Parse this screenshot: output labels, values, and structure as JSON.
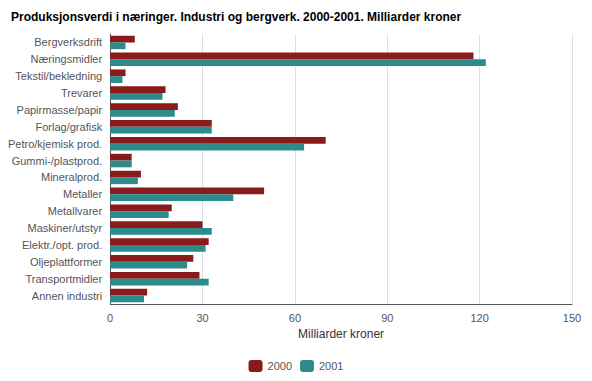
{
  "chart_data": {
    "type": "bar",
    "orientation": "horizontal",
    "title": "Produksjonsverdi i næringer. Industri og bergverk. 2000-2001. Milliarder kroner",
    "categories": [
      "Bergverksdrift",
      "Næringsmidler",
      "Tekstil/bekledning",
      "Trevarer",
      "Papirmasse/papir",
      "Forlag/grafisk",
      "Petro/kjemisk prod.",
      "Gummi-/plastprod.",
      "Mineralprod.",
      "Metaller",
      "Metallvarer",
      "Maskiner/utstyr",
      "Elektr./opt. prod.",
      "Oljeplattformer",
      "Transportmidler",
      "Annen industri"
    ],
    "series": [
      {
        "name": "2000",
        "color": "#8B1A1A",
        "values": [
          8,
          118,
          5,
          18,
          22,
          33,
          70,
          7,
          10,
          50,
          20,
          30,
          32,
          27,
          29,
          12
        ]
      },
      {
        "name": "2001",
        "color": "#2E8B8B",
        "values": [
          5,
          122,
          4,
          17,
          21,
          33,
          63,
          7,
          9,
          40,
          19,
          33,
          31,
          25,
          32,
          11
        ]
      }
    ],
    "xlabel": "Milliarder kroner",
    "xlim": [
      0,
      150
    ],
    "xticks": [
      0,
      30,
      60,
      90,
      120,
      150
    ],
    "grid": true,
    "legend": "bottom"
  }
}
